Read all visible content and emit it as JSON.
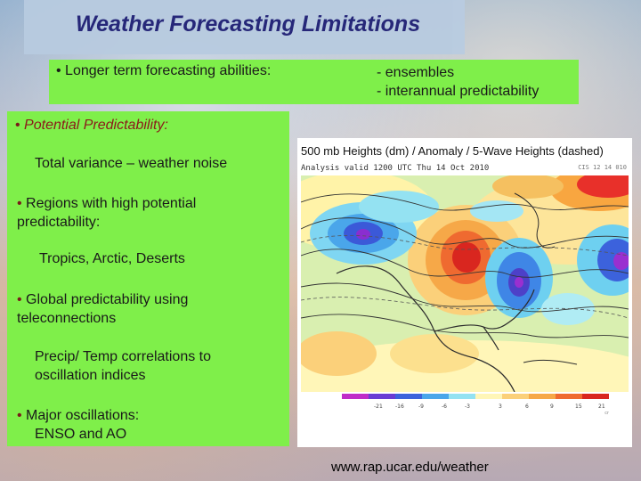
{
  "title": "Weather Forecasting Limitations",
  "top_box": {
    "bullet": "• Longer term forecasting abilities:",
    "lines": [
      "- ensembles",
      "- interannual predictability"
    ]
  },
  "left_box": {
    "pp_bullet": "• ",
    "pp_label": "Potential Predictability:",
    "pp_sub": "Total variance – weather noise",
    "regions_bullet": "• ",
    "regions_line1": "Regions with high potential",
    "regions_line2": "predictability:",
    "regions_sub": "Tropics, Arctic, Deserts",
    "global_bullet": "• ",
    "global_line1": "Global predictability using",
    "global_line2": "teleconnections",
    "precip_line1": "Precip/ Temp correlations to",
    "precip_line2": "oscillation indices",
    "major_bullet": "• ",
    "major_line1": "Major oscillations:",
    "major_line2": "ENSO and AO"
  },
  "map": {
    "title": "500 mb Heights (dm) / Anomaly / 5-Wave Heights (dashed)",
    "subtitle": "Analysis valid 1200 UTC Thu 14 Oct 2010",
    "code": "CIS 12 14 010",
    "scale_labels": [
      "-21",
      "-16",
      "-9",
      "-6",
      "-3",
      "3",
      "6",
      "9",
      "15",
      "21"
    ],
    "credit": "cr"
  },
  "url": "www.rap.ucar.edu/weather"
}
